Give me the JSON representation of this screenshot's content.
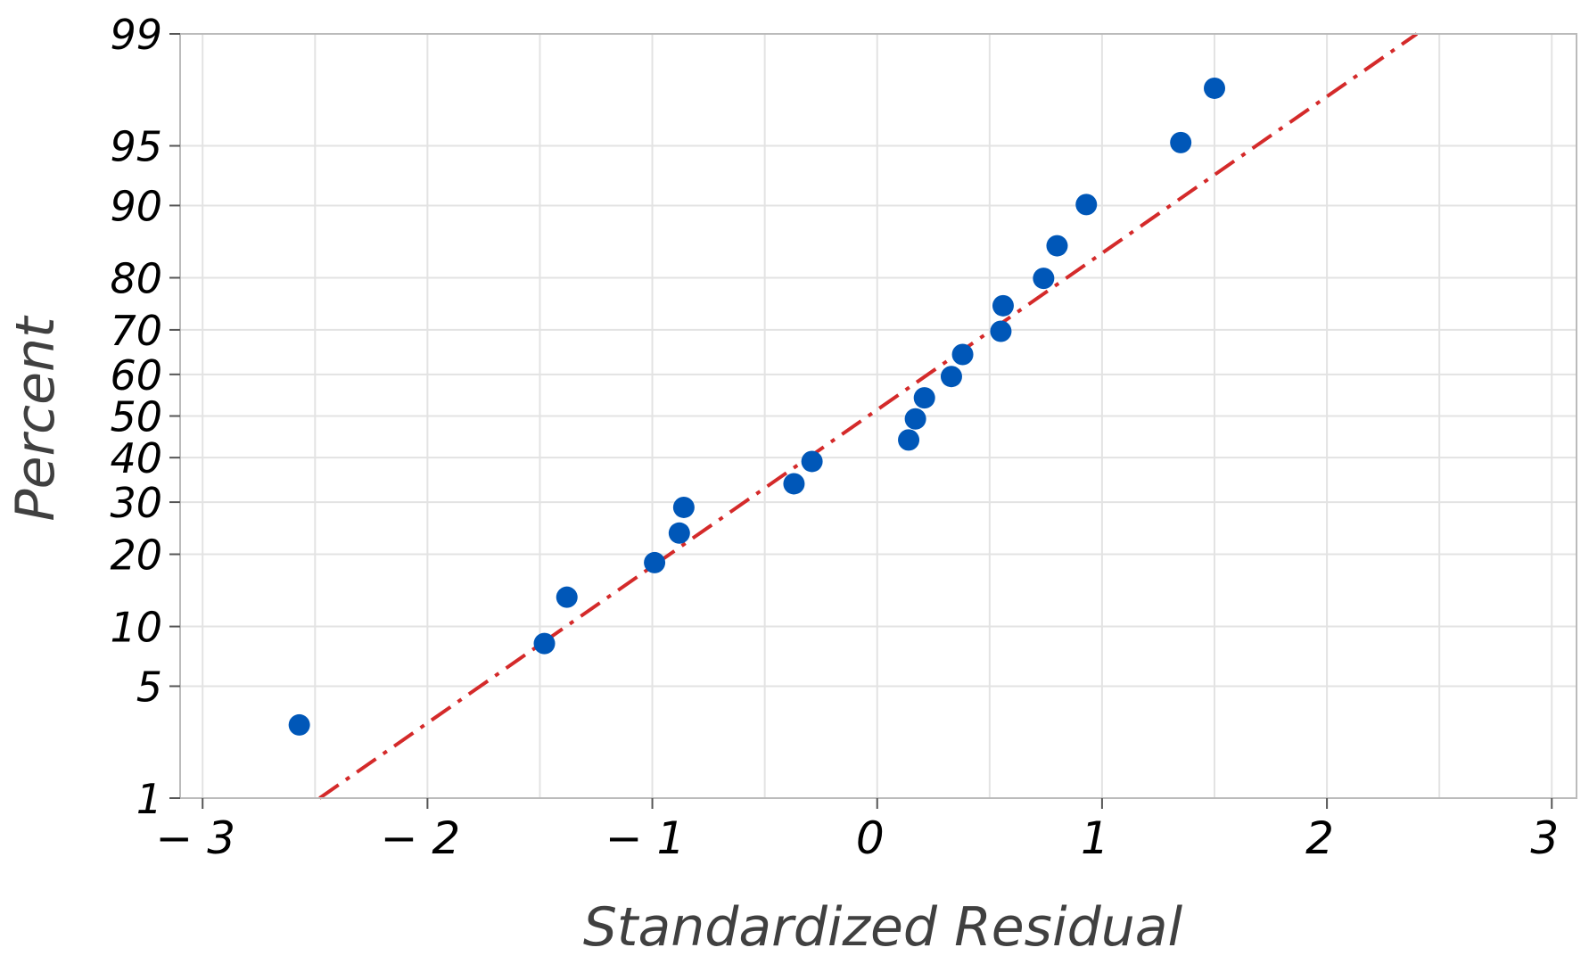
{
  "chart_data": {
    "type": "scatter",
    "plot": "normal-probability",
    "title": "",
    "xlabel": "Standardized Residual",
    "ylabel": "Percent",
    "xlim": [
      -3,
      3
    ],
    "y_scale": "normal-probability",
    "ylim": [
      1,
      99
    ],
    "x_ticks": [
      -3,
      -2,
      -1,
      0,
      1,
      2,
      3
    ],
    "x_tick_labels": [
      "− 3",
      "− 2",
      "− 1",
      "0",
      "1",
      "2",
      "3"
    ],
    "y_ticks": [
      1,
      5,
      10,
      20,
      30,
      40,
      50,
      60,
      70,
      80,
      90,
      95,
      99
    ],
    "y_tick_labels": [
      "1",
      "5",
      "10",
      "20",
      "30",
      "40",
      "50",
      "60",
      "70",
      "80",
      "90",
      "95",
      "99"
    ],
    "grid": true,
    "colors": {
      "points": "#0057B8",
      "fit_line": "#D42A2A",
      "grid": "#E3E3E3",
      "frame": "#BBBBBB"
    },
    "points": [
      {
        "x": -2.57,
        "y": 3.0
      },
      {
        "x": -1.48,
        "y": 8.3
      },
      {
        "x": -1.38,
        "y": 13.5
      },
      {
        "x": -0.99,
        "y": 18.6
      },
      {
        "x": -0.88,
        "y": 23.8
      },
      {
        "x": -0.86,
        "y": 28.9
      },
      {
        "x": -0.37,
        "y": 34.0
      },
      {
        "x": -0.29,
        "y": 39.1
      },
      {
        "x": 0.14,
        "y": 44.2
      },
      {
        "x": 0.17,
        "y": 49.3
      },
      {
        "x": 0.21,
        "y": 54.4
      },
      {
        "x": 0.33,
        "y": 59.5
      },
      {
        "x": 0.38,
        "y": 64.6
      },
      {
        "x": 0.55,
        "y": 69.7
      },
      {
        "x": 0.56,
        "y": 74.9
      },
      {
        "x": 0.74,
        "y": 79.9
      },
      {
        "x": 0.8,
        "y": 85.0
      },
      {
        "x": 0.93,
        "y": 90.1
      },
      {
        "x": 1.35,
        "y": 95.2
      },
      {
        "x": 1.5,
        "y": 97.7
      }
    ],
    "fit_line": [
      {
        "x": -2.48,
        "y": 1
      },
      {
        "x": 2.4,
        "y": 99
      }
    ]
  }
}
